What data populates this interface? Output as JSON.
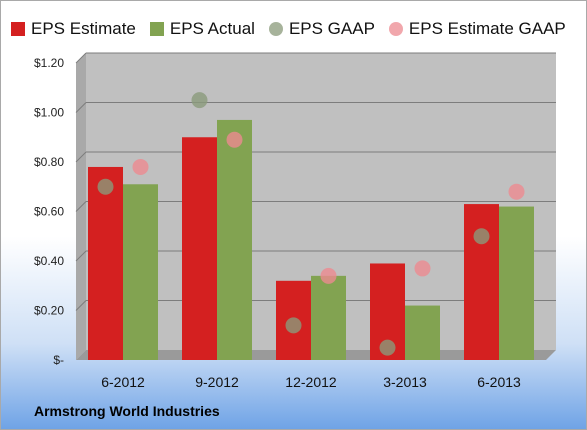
{
  "chart_data": {
    "type": "bar",
    "categories": [
      "6-2012",
      "9-2012",
      "12-2012",
      "3-2013",
      "6-2013"
    ],
    "series": [
      {
        "name": "EPS Estimate",
        "kind": "bar",
        "color": "#d42020",
        "values": [
          0.78,
          0.9,
          0.32,
          0.39,
          0.63
        ]
      },
      {
        "name": "EPS Actual",
        "kind": "bar",
        "color": "#82a351",
        "values": [
          0.71,
          0.97,
          0.34,
          0.22,
          0.62
        ]
      },
      {
        "name": "EPS GAAP",
        "kind": "point",
        "color": "#8a9a7a",
        "values": [
          0.7,
          1.05,
          0.14,
          0.05,
          0.5
        ]
      },
      {
        "name": "EPS Estimate GAAP",
        "kind": "point",
        "color": "#ec8a90",
        "values": [
          0.78,
          0.89,
          0.34,
          0.37,
          0.68
        ]
      }
    ],
    "y_ticks": [
      "$-",
      "$0.20",
      "$0.40",
      "$0.60",
      "$0.80",
      "$1.00",
      "$1.20"
    ],
    "ylim": [
      0,
      1.2
    ],
    "grid": true,
    "legend": "top"
  },
  "footer": {
    "company": "Armstrong World Industries"
  }
}
